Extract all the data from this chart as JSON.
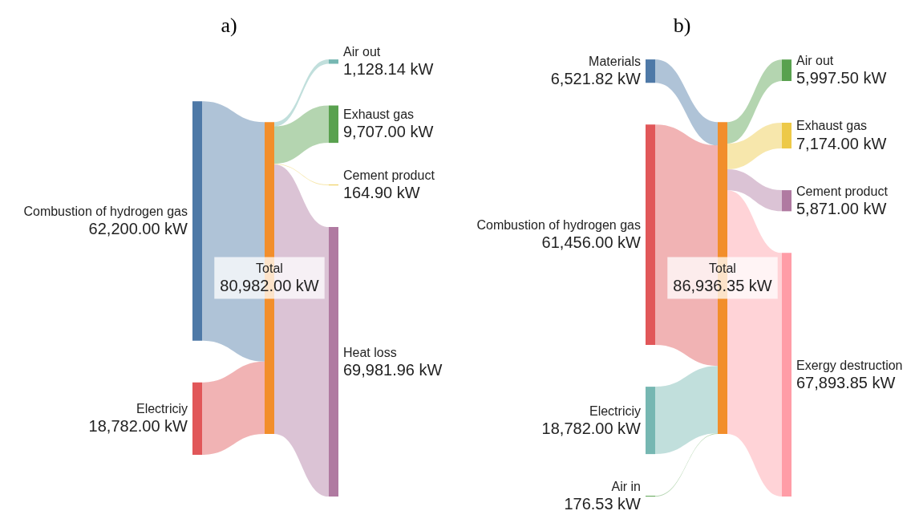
{
  "chart_data": [
    {
      "type": "other",
      "title": "a)",
      "categories": [
        "Combustion of hydrogen gas",
        "Electriciy",
        "Total",
        "Air out",
        "Exhaust gas",
        "Cement product",
        "Heat loss"
      ],
      "series": [
        {
          "values": [
            62200.0,
            18782.0,
            null,
            null,
            null,
            null,
            null
          ],
          "colors": [
            "#4e79a7",
            "#e15759",
            null,
            null,
            null,
            null,
            null
          ],
          "value_labels": [
            "62,200.00 kW",
            "18,782.00 kW",
            null,
            null,
            null,
            null,
            null
          ]
        },
        {
          "values": [
            null,
            null,
            80982.0,
            null,
            null,
            null,
            null
          ],
          "colors": [
            null,
            null,
            "#f28e2b",
            null,
            null,
            null,
            null
          ],
          "value_labels": [
            null,
            null,
            "80,982.00 kW",
            null,
            null,
            null,
            null
          ]
        },
        {
          "values": [
            null,
            null,
            null,
            1128.14,
            9707.0,
            164.9,
            69981.96
          ],
          "colors": [
            null,
            null,
            null,
            "#76b7b2",
            "#59a14f",
            "#edc948",
            "#b07aa1"
          ],
          "value_labels": [
            null,
            null,
            null,
            "1,128.14 kW",
            "9,707.00 kW",
            "164.90 kW",
            "69,981.96 kW"
          ]
        }
      ]
    },
    {
      "type": "other",
      "title": "b)",
      "categories": [
        "Materials",
        "Combustion of hydrogen gas",
        "Electriciy",
        "Air in",
        "Total",
        "Air out",
        "Exhaust gas",
        "Cement product",
        "Exergy destruction"
      ],
      "series": [
        {
          "values": [
            6521.82,
            61456.0,
            18782.0,
            176.53,
            null,
            null,
            null,
            null,
            null
          ],
          "colors": [
            "#4e79a7",
            "#e15759",
            "#76b7b2",
            "#59a14f",
            null,
            null,
            null,
            null,
            null
          ],
          "value_labels": [
            "6,521.82 kW",
            "61,456.00 kW",
            "18,782.00 kW",
            "176.53 kW",
            null,
            null,
            null,
            null,
            null
          ]
        },
        {
          "values": [
            null,
            null,
            null,
            null,
            86936.35,
            null,
            null,
            null,
            null
          ],
          "colors": [
            null,
            null,
            null,
            null,
            "#f28e2b",
            null,
            null,
            null,
            null
          ],
          "value_labels": [
            null,
            null,
            null,
            null,
            "86,936.35 kW",
            null,
            null,
            null,
            null
          ]
        },
        {
          "values": [
            null,
            null,
            null,
            null,
            null,
            5997.5,
            7174.0,
            5871.0,
            67893.85
          ],
          "colors": [
            null,
            null,
            null,
            null,
            null,
            "#59a14f",
            "#edc948",
            "#b07aa1",
            "#ff9da7"
          ],
          "value_labels": [
            null,
            null,
            null,
            null,
            null,
            "5,997.50 kW",
            "7,174.00 kW",
            "5,871.00 kW",
            "67,893.85 kW"
          ]
        }
      ]
    }
  ]
}
